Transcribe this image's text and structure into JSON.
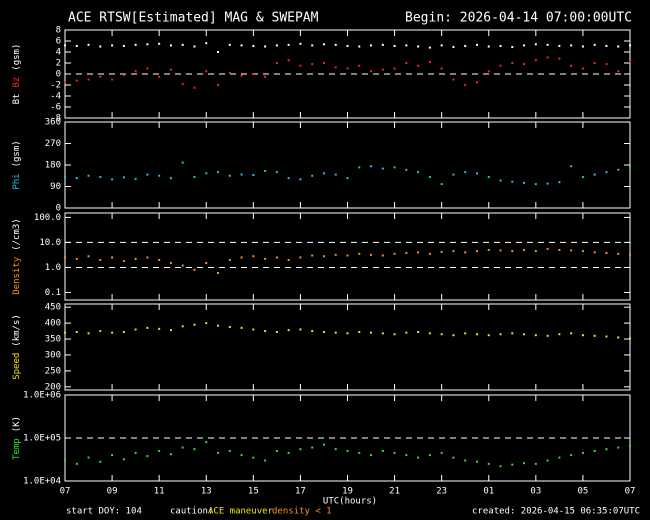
{
  "title": "ACE RTSW[Estimated] MAG & SWEPAM",
  "begin": "Begin: 2026-04-14 07:00:00UTC",
  "x_label": "UTC(hours)",
  "footer": {
    "start": "start DOY: 104",
    "caution": "caution:",
    "maneuver": "ACE maneuver",
    "density": "density < 1",
    "created": "created: 2026-04-15 06:35:07UTC"
  },
  "chart_data": [
    {
      "type": "scatter",
      "ylabel": "(gsm)",
      "x": [
        0,
        0.5,
        1,
        1.5,
        2,
        2.5,
        3,
        3.5,
        4,
        4.5,
        5,
        5.5,
        6,
        6.5,
        7,
        7.5,
        8,
        8.5,
        9,
        9.5,
        10,
        10.5,
        11,
        11.5,
        12,
        12.5,
        13,
        13.5,
        14,
        14.5,
        15,
        15.5,
        16,
        16.5,
        17,
        17.5,
        18,
        18.5,
        19,
        19.5,
        20,
        20.5,
        21,
        21.5,
        22,
        22.5,
        23,
        23.5,
        24
      ],
      "xlim": [
        0,
        24
      ],
      "xticks": [
        {
          "value": 0,
          "label": "07"
        },
        {
          "value": 2,
          "label": "09"
        },
        {
          "value": 4,
          "label": "11"
        },
        {
          "value": 6,
          "label": "13"
        },
        {
          "value": 8,
          "label": "15"
        },
        {
          "value": 10,
          "label": "17"
        },
        {
          "value": 12,
          "label": "19"
        },
        {
          "value": 14,
          "label": "21"
        },
        {
          "value": 16,
          "label": "23"
        },
        {
          "value": 18,
          "label": "01"
        },
        {
          "value": 20,
          "label": "03"
        },
        {
          "value": 22,
          "label": "05"
        },
        {
          "value": 24,
          "label": "07"
        }
      ],
      "ylim": [
        -8,
        8
      ],
      "yticks": [
        -8,
        -6,
        -4,
        -2,
        0,
        2,
        4,
        6,
        8
      ],
      "dashed_lines": [
        0
      ],
      "series": [
        {
          "name": "Bt",
          "color": "#ffffff",
          "values": [
            5.2,
            5.1,
            5.3,
            5.0,
            5.2,
            5.1,
            5.3,
            5.4,
            5.5,
            5.2,
            5.3,
            5.0,
            5.6,
            4.0,
            5.3,
            5.2,
            5.1,
            5.0,
            5.2,
            5.3,
            5.5,
            5.2,
            5.4,
            5.3,
            5.1,
            5.0,
            5.2,
            5.3,
            5.1,
            5.2,
            5.0,
            4.8,
            5.2,
            4.9,
            5.1,
            5.3,
            5.0,
            5.1,
            4.9,
            5.2,
            5.4,
            5.3,
            5.1,
            5.2,
            5.0,
            5.3,
            5.1,
            5.0,
            5.2
          ]
        },
        {
          "name": "Bz",
          "color": "#ff2020",
          "values": [
            -1.5,
            -1.2,
            -1.0,
            -0.5,
            -1.0,
            -0.2,
            0.5,
            1.0,
            -0.5,
            0.8,
            -1.8,
            -2.5,
            0.5,
            -2.0,
            0.2,
            -0.3,
            0.0,
            -0.5,
            2.0,
            2.5,
            1.5,
            1.8,
            2.0,
            1.2,
            1.0,
            1.5,
            0.5,
            0.8,
            1.0,
            2.0,
            1.5,
            2.2,
            1.0,
            -1.0,
            -2.0,
            -1.5,
            0.5,
            1.5,
            2.0,
            1.8,
            2.5,
            3.0,
            2.8,
            1.5,
            1.0,
            2.0,
            1.8,
            0.5,
            2.2
          ]
        }
      ]
    },
    {
      "type": "scatter",
      "ylabel": "(gsm)",
      "x": [
        0,
        0.5,
        1,
        1.5,
        2,
        2.5,
        3,
        3.5,
        4,
        4.5,
        5,
        5.5,
        6,
        6.5,
        7,
        7.5,
        8,
        8.5,
        9,
        9.5,
        10,
        10.5,
        11,
        11.5,
        12,
        12.5,
        13,
        13.5,
        14,
        14.5,
        15,
        15.5,
        16,
        16.5,
        17,
        17.5,
        18,
        18.5,
        19,
        19.5,
        20,
        20.5,
        21,
        21.5,
        22,
        22.5,
        23,
        23.5,
        24
      ],
      "xlim": [
        0,
        24
      ],
      "xticks": [
        {
          "value": 0,
          "label": "07"
        },
        {
          "value": 2,
          "label": "09"
        },
        {
          "value": 4,
          "label": "11"
        },
        {
          "value": 6,
          "label": "13"
        },
        {
          "value": 8,
          "label": "15"
        },
        {
          "value": 10,
          "label": "17"
        },
        {
          "value": 12,
          "label": "19"
        },
        {
          "value": 14,
          "label": "21"
        },
        {
          "value": 16,
          "label": "23"
        },
        {
          "value": 18,
          "label": "01"
        },
        {
          "value": 20,
          "label": "03"
        },
        {
          "value": 22,
          "label": "05"
        },
        {
          "value": 24,
          "label": "07"
        }
      ],
      "ylim": [
        0,
        360
      ],
      "yticks": [
        0,
        90,
        180,
        270,
        360
      ],
      "series": [
        {
          "name": "Phi",
          "color": "#20c0e0",
          "values": [
            130,
            125,
            135,
            130,
            120,
            128,
            122,
            140,
            135,
            125,
            190,
            130,
            145,
            150,
            135,
            140,
            138,
            155,
            150,
            125,
            120,
            135,
            145,
            140,
            125,
            170,
            175,
            165,
            170,
            160,
            150,
            130,
            100,
            140,
            150,
            145,
            130,
            115,
            110,
            105,
            100,
            102,
            108,
            175,
            130,
            140,
            150,
            160,
            170
          ]
        }
      ]
    },
    {
      "type": "scatter",
      "ylabel": "(/cm3)",
      "log": true,
      "x": [
        0,
        0.5,
        1,
        1.5,
        2,
        2.5,
        3,
        3.5,
        4,
        4.5,
        5,
        5.5,
        6,
        6.5,
        7,
        7.5,
        8,
        8.5,
        9,
        9.5,
        10,
        10.5,
        11,
        11.5,
        12,
        12.5,
        13,
        13.5,
        14,
        14.5,
        15,
        15.5,
        16,
        16.5,
        17,
        17.5,
        18,
        18.5,
        19,
        19.5,
        20,
        20.5,
        21,
        21.5,
        22,
        22.5,
        23,
        23.5,
        24
      ],
      "xlim": [
        0,
        24
      ],
      "xticks": [
        {
          "value": 0,
          "label": "07"
        },
        {
          "value": 2,
          "label": "09"
        },
        {
          "value": 4,
          "label": "11"
        },
        {
          "value": 6,
          "label": "13"
        },
        {
          "value": 8,
          "label": "15"
        },
        {
          "value": 10,
          "label": "17"
        },
        {
          "value": 12,
          "label": "19"
        },
        {
          "value": 14,
          "label": "21"
        },
        {
          "value": 16,
          "label": "23"
        },
        {
          "value": 18,
          "label": "01"
        },
        {
          "value": 20,
          "label": "03"
        },
        {
          "value": 22,
          "label": "05"
        },
        {
          "value": 24,
          "label": "07"
        }
      ],
      "ylim": [
        0.05,
        150
      ],
      "yticks": [
        0.1,
        {
          "value": 1,
          "label": "1.0"
        },
        {
          "value": 10,
          "label": "10.0"
        },
        {
          "value": 100,
          "label": "100.0"
        }
      ],
      "dashed_lines": [
        1,
        10
      ],
      "series": [
        {
          "name": "Density",
          "color": "#ff9020",
          "values": [
            2.5,
            2.2,
            2.8,
            2.0,
            2.5,
            1.8,
            2.2,
            2.5,
            2.0,
            1.5,
            1.2,
            0.8,
            1.5,
            0.6,
            2.0,
            2.5,
            2.8,
            2.2,
            2.5,
            2.0,
            2.5,
            3.0,
            2.8,
            3.2,
            3.0,
            3.5,
            3.2,
            3.0,
            3.5,
            3.8,
            4.0,
            3.5,
            4.2,
            4.5,
            4.0,
            4.5,
            5.0,
            4.8,
            4.5,
            5.0,
            4.5,
            5.5,
            5.0,
            4.8,
            4.5,
            4.0,
            3.8,
            3.5,
            3.2
          ]
        }
      ]
    },
    {
      "type": "scatter",
      "ylabel": "(km/s)",
      "x": [
        0,
        0.5,
        1,
        1.5,
        2,
        2.5,
        3,
        3.5,
        4,
        4.5,
        5,
        5.5,
        6,
        6.5,
        7,
        7.5,
        8,
        8.5,
        9,
        9.5,
        10,
        10.5,
        11,
        11.5,
        12,
        12.5,
        13,
        13.5,
        14,
        14.5,
        15,
        15.5,
        16,
        16.5,
        17,
        17.5,
        18,
        18.5,
        19,
        19.5,
        20,
        20.5,
        21,
        21.5,
        22,
        22.5,
        23,
        23.5,
        24
      ],
      "xlim": [
        0,
        24
      ],
      "xticks": [
        {
          "value": 0,
          "label": "07"
        },
        {
          "value": 2,
          "label": "09"
        },
        {
          "value": 4,
          "label": "11"
        },
        {
          "value": 6,
          "label": "13"
        },
        {
          "value": 8,
          "label": "15"
        },
        {
          "value": 10,
          "label": "17"
        },
        {
          "value": 12,
          "label": "19"
        },
        {
          "value": 14,
          "label": "21"
        },
        {
          "value": 16,
          "label": "23"
        },
        {
          "value": 18,
          "label": "01"
        },
        {
          "value": 20,
          "label": "03"
        },
        {
          "value": 22,
          "label": "05"
        },
        {
          "value": 24,
          "label": "07"
        }
      ],
      "ylim": [
        190,
        460
      ],
      "yticks": [
        200,
        250,
        300,
        350,
        400,
        450
      ],
      "series": [
        {
          "name": "Speed",
          "color": "#f0e020",
          "values": [
            370,
            372,
            368,
            375,
            370,
            372,
            380,
            385,
            382,
            378,
            390,
            395,
            400,
            392,
            388,
            385,
            380,
            375,
            372,
            378,
            380,
            375,
            372,
            370,
            368,
            372,
            370,
            368,
            365,
            370,
            372,
            368,
            365,
            362,
            368,
            365,
            362,
            365,
            368,
            365,
            362,
            360,
            365,
            368,
            362,
            360,
            358,
            355,
            352
          ]
        }
      ]
    },
    {
      "type": "scatter",
      "ylabel": "(K)",
      "log": true,
      "x": [
        0,
        0.5,
        1,
        1.5,
        2,
        2.5,
        3,
        3.5,
        4,
        4.5,
        5,
        5.5,
        6,
        6.5,
        7,
        7.5,
        8,
        8.5,
        9,
        9.5,
        10,
        10.5,
        11,
        11.5,
        12,
        12.5,
        13,
        13.5,
        14,
        14.5,
        15,
        15.5,
        16,
        16.5,
        17,
        17.5,
        18,
        18.5,
        19,
        19.5,
        20,
        20.5,
        21,
        21.5,
        22,
        22.5,
        23,
        23.5,
        24
      ],
      "xlim": [
        0,
        24
      ],
      "xticks": [
        {
          "value": 0,
          "label": "07"
        },
        {
          "value": 2,
          "label": "09"
        },
        {
          "value": 4,
          "label": "11"
        },
        {
          "value": 6,
          "label": "13"
        },
        {
          "value": 8,
          "label": "15"
        },
        {
          "value": 10,
          "label": "17"
        },
        {
          "value": 12,
          "label": "19"
        },
        {
          "value": 14,
          "label": "21"
        },
        {
          "value": 16,
          "label": "23"
        },
        {
          "value": 18,
          "label": "01"
        },
        {
          "value": 20,
          "label": "03"
        },
        {
          "value": 22,
          "label": "05"
        },
        {
          "value": 24,
          "label": "07"
        }
      ],
      "ylim": [
        10000,
        1000000
      ],
      "yticks": [
        {
          "value": 10000,
          "label": "1.0E+04"
        },
        {
          "value": 100000,
          "label": "1.0E+05"
        },
        {
          "value": 1000000,
          "label": "1.0E+06"
        }
      ],
      "dashed_lines": [
        100000
      ],
      "series": [
        {
          "name": "Temp",
          "color": "#30e030",
          "values": [
            30000,
            25000,
            35000,
            28000,
            40000,
            32000,
            45000,
            38000,
            50000,
            42000,
            60000,
            55000,
            80000,
            45000,
            50000,
            40000,
            35000,
            30000,
            50000,
            45000,
            55000,
            60000,
            70000,
            55000,
            50000,
            45000,
            40000,
            50000,
            45000,
            40000,
            35000,
            40000,
            45000,
            35000,
            30000,
            28000,
            25000,
            22000,
            24000,
            26000,
            25000,
            30000,
            35000,
            40000,
            45000,
            50000,
            55000,
            60000,
            65000
          ]
        }
      ]
    }
  ]
}
